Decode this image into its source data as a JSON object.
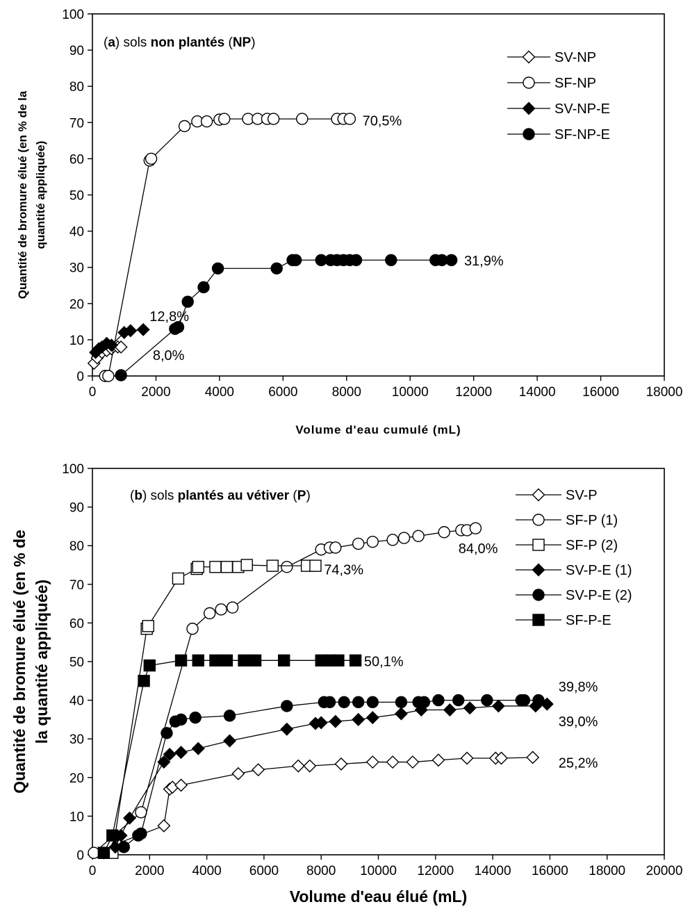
{
  "chart_data": [
    {
      "type": "scatter",
      "panel": "a",
      "title_parts": [
        {
          "text": "(",
          "bold": false
        },
        {
          "text": "a",
          "bold": true
        },
        {
          "text": ") sols ",
          "bold": false
        },
        {
          "text": "non plantés",
          "bold": true
        },
        {
          "text": " (",
          "bold": false
        },
        {
          "text": "NP",
          "bold": true
        },
        {
          "text": ")",
          "bold": false
        }
      ],
      "xlabel": "Volume d'eau cumulé (mL)",
      "ylabel_lines": [
        "Quantité de bromure élué (en % de la",
        "quantité appliquée)"
      ],
      "xlim": [
        0,
        18000
      ],
      "ylim": [
        0,
        100
      ],
      "xticks": [
        0,
        2000,
        4000,
        6000,
        8000,
        10000,
        12000,
        14000,
        16000,
        18000
      ],
      "yticks": [
        0,
        10,
        20,
        30,
        40,
        50,
        60,
        70,
        80,
        90,
        100
      ],
      "legend_position": "top-right",
      "series": [
        {
          "name": "SV-NP",
          "marker": "diamond",
          "fill": "open",
          "x": [
            50,
            150,
            300,
            450,
            600,
            800,
            900
          ],
          "y": [
            3.5,
            5,
            6.5,
            7,
            7.5,
            8,
            8
          ]
        },
        {
          "name": "SF-NP",
          "marker": "circle",
          "fill": "open",
          "x": [
            400,
            500,
            1800,
            1850,
            2900,
            3300,
            3600,
            4000,
            4150,
            4900,
            5200,
            5500,
            5700,
            6600,
            7700,
            7900,
            8100
          ],
          "y": [
            0,
            0,
            59.5,
            60,
            69,
            70.3,
            70.3,
            70.8,
            71,
            71,
            71,
            71,
            71,
            71,
            71,
            71,
            71
          ]
        },
        {
          "name": "SV-NP-E",
          "marker": "diamond",
          "fill": "filled",
          "x": [
            100,
            200,
            300,
            450,
            600,
            1000,
            1200,
            1600
          ],
          "y": [
            6.5,
            7.5,
            8,
            9,
            8.5,
            12,
            12.5,
            12.8
          ]
        },
        {
          "name": "SF-NP-E",
          "marker": "circle",
          "fill": "filled",
          "x": [
            900,
            2600,
            2700,
            3000,
            3500,
            3950,
            5800,
            6300,
            6400,
            7200,
            7500,
            7700,
            7900,
            8100,
            8300,
            9400,
            10800,
            11000,
            11300
          ],
          "y": [
            0.2,
            13,
            13.5,
            20.5,
            24.5,
            29.7,
            29.7,
            32,
            32,
            32,
            32,
            32,
            32,
            32,
            32,
            32,
            32,
            32,
            32
          ]
        }
      ],
      "annotations": [
        {
          "text": "70,5%",
          "x": 8500,
          "y": 70.5
        },
        {
          "text": "31,9%",
          "x": 11700,
          "y": 31.9
        },
        {
          "text": "12,8%",
          "x": 1800,
          "y": 16.5
        },
        {
          "text": "8,0%",
          "x": 1900,
          "y": 5.8
        }
      ]
    },
    {
      "type": "scatter",
      "panel": "b",
      "title_parts": [
        {
          "text": "(",
          "bold": false
        },
        {
          "text": "b",
          "bold": true
        },
        {
          "text": ") sols ",
          "bold": false
        },
        {
          "text": "plantés au vétiver",
          "bold": true
        },
        {
          "text": " (",
          "bold": false
        },
        {
          "text": "P",
          "bold": true
        },
        {
          "text": ")",
          "bold": false
        }
      ],
      "xlabel": "Volume d'eau élué (mL)",
      "ylabel_lines": [
        "Quantité de bromure élué (en % de",
        "la quantité appliquée)"
      ],
      "xlim": [
        0,
        20000
      ],
      "ylim": [
        0,
        100
      ],
      "xticks": [
        0,
        2000,
        4000,
        6000,
        8000,
        10000,
        12000,
        14000,
        16000,
        18000,
        20000
      ],
      "yticks": [
        0,
        10,
        20,
        30,
        40,
        50,
        60,
        70,
        80,
        90,
        100
      ],
      "legend_position": "top-right",
      "series": [
        {
          "name": "SV-P",
          "marker": "diamond",
          "fill": "open",
          "x": [
            400,
            900,
            2500,
            2700,
            2800,
            3100,
            5100,
            5800,
            7200,
            7600,
            8700,
            9800,
            10500,
            11200,
            12100,
            13100,
            14100,
            14300,
            15400
          ],
          "y": [
            0.5,
            3,
            7.5,
            17,
            17.5,
            18,
            21,
            22,
            23,
            23,
            23.5,
            24,
            24,
            24,
            24.5,
            25,
            25,
            25,
            25.2
          ]
        },
        {
          "name": "SF-P (1)",
          "marker": "circle",
          "fill": "open",
          "x": [
            50,
            1700,
            3500,
            4100,
            4500,
            4900,
            6800,
            8000,
            8300,
            8500,
            9300,
            9800,
            10500,
            10900,
            11400,
            12300,
            12900,
            13100,
            13400
          ],
          "y": [
            0.5,
            11,
            58.5,
            62.5,
            63.5,
            64,
            74.5,
            79,
            79.5,
            79.5,
            80.5,
            81,
            81.5,
            82,
            82.5,
            83.5,
            84,
            84,
            84.5
          ]
        },
        {
          "name": "SF-P (2)",
          "marker": "square",
          "fill": "open",
          "x": [
            400,
            700,
            1900,
            1950,
            3000,
            3650,
            3700,
            4300,
            4700,
            5100,
            5400,
            6300,
            7500,
            7800
          ],
          "y": [
            0.5,
            0.5,
            58.5,
            59.2,
            71.5,
            74,
            74.5,
            74.5,
            74.5,
            74.5,
            75,
            74.8,
            74.8,
            74.8
          ]
        },
        {
          "name": "SV-P-E (1)",
          "marker": "diamond",
          "fill": "filled",
          "x": [
            800,
            1000,
            1300,
            2500,
            2700,
            3100,
            3700,
            4800,
            6800,
            7800,
            8000,
            8500,
            9300,
            9800,
            10800,
            11500,
            12500,
            13200,
            14200,
            15500,
            15900
          ],
          "y": [
            2,
            5,
            9.5,
            24,
            26,
            26.5,
            27.5,
            29.5,
            32.5,
            34,
            34.2,
            34.5,
            35,
            35.5,
            36.5,
            37.5,
            37.5,
            38,
            38.5,
            38.5,
            39
          ]
        },
        {
          "name": "SV-P-E (2)",
          "marker": "circle",
          "fill": "filled",
          "x": [
            1100,
            1600,
            1700,
            2600,
            2900,
            3100,
            3600,
            4800,
            6800,
            8100,
            8300,
            8800,
            9300,
            9800,
            10800,
            11400,
            11600,
            12100,
            12800,
            13800,
            15000,
            15100,
            15600
          ],
          "y": [
            2,
            5,
            5.5,
            31.5,
            34.5,
            35,
            35.5,
            36,
            38.5,
            39.5,
            39.5,
            39.5,
            39.5,
            39.5,
            39.5,
            39.5,
            39.5,
            40,
            40,
            40,
            40,
            40,
            40
          ]
        },
        {
          "name": "SF-P-E",
          "marker": "square",
          "fill": "filled",
          "x": [
            400,
            700,
            1800,
            2000,
            3100,
            3700,
            4300,
            4700,
            5300,
            5700,
            6700,
            8000,
            8300,
            8600,
            9200
          ],
          "y": [
            0.5,
            5,
            45,
            49,
            50.3,
            50.3,
            50.3,
            50.3,
            50.3,
            50.3,
            50.3,
            50.3,
            50.3,
            50.3,
            50.3
          ]
        }
      ],
      "annotations": [
        {
          "text": "84,0%",
          "x": 12800,
          "y": 79.3
        },
        {
          "text": "74,3%",
          "x": 8100,
          "y": 73.8
        },
        {
          "text": "50,1%",
          "x": 9500,
          "y": 50.1
        },
        {
          "text": "39,8%",
          "x": 16300,
          "y": 43.5
        },
        {
          "text": "39,0%",
          "x": 16300,
          "y": 34.5
        },
        {
          "text": "25,2%",
          "x": 16300,
          "y": 23.8
        }
      ]
    }
  ]
}
